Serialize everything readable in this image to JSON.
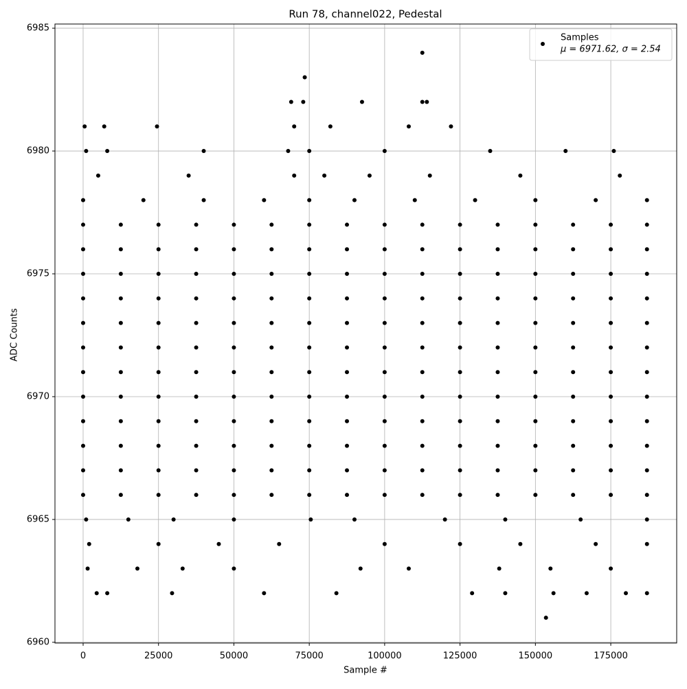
{
  "chart_data": {
    "type": "scatter",
    "title": "Run 78, channel022, Pedestal",
    "x_label": "Sample #",
    "y_label": "ADC Counts",
    "xlim": [
      -9340,
      196860
    ],
    "ylim": [
      6959.97,
      6985.17
    ],
    "xticks": [
      0,
      25000,
      50000,
      75000,
      100000,
      125000,
      150000,
      175000
    ],
    "yticks": [
      6960,
      6965,
      6970,
      6975,
      6980,
      6985
    ],
    "grid": true,
    "legend_position": "upper right",
    "series": [
      {
        "name": "Samples",
        "stats": "$\\mu$ = 6971.62, $\\sigma$ = 2.54",
        "stats_text": "μ = 6971.62, σ = 2.54",
        "color": "#000000",
        "x": [
          0,
          12500,
          25000,
          37500,
          50000,
          62500,
          75000,
          87500,
          100000,
          112500,
          125000,
          137500,
          150000,
          162500,
          175000,
          187000,
          0,
          12500,
          25000,
          37500,
          50000,
          62500,
          75000,
          87500,
          100000,
          112500,
          125000,
          137500,
          150000,
          162500,
          175000,
          187000,
          0,
          12500,
          25000,
          37500,
          50000,
          62500,
          75000,
          87500,
          100000,
          112500,
          125000,
          137500,
          150000,
          162500,
          175000,
          187000,
          0,
          12500,
          25000,
          37500,
          50000,
          62500,
          75000,
          87500,
          100000,
          112500,
          125000,
          137500,
          150000,
          162500,
          175000,
          187000,
          0,
          12500,
          25000,
          37500,
          50000,
          62500,
          75000,
          87500,
          100000,
          112500,
          125000,
          137500,
          150000,
          162500,
          175000,
          187000,
          0,
          12500,
          25000,
          37500,
          50000,
          62500,
          75000,
          87500,
          100000,
          112500,
          125000,
          137500,
          150000,
          162500,
          175000,
          187000,
          0,
          12500,
          25000,
          37500,
          50000,
          62500,
          75000,
          87500,
          100000,
          112500,
          125000,
          137500,
          150000,
          162500,
          175000,
          187000,
          0,
          12500,
          25000,
          37500,
          50000,
          62500,
          75000,
          87500,
          100000,
          112500,
          125000,
          137500,
          150000,
          162500,
          175000,
          187000,
          0,
          12500,
          25000,
          37500,
          50000,
          62500,
          75000,
          87500,
          100000,
          112500,
          125000,
          137500,
          150000,
          162500,
          175000,
          187000,
          0,
          12500,
          25000,
          37500,
          50000,
          62500,
          75000,
          87500,
          100000,
          112500,
          125000,
          137500,
          150000,
          162500,
          175000,
          187000,
          0,
          12500,
          25000,
          37500,
          50000,
          62500,
          75000,
          87500,
          100000,
          112500,
          125000,
          137500,
          150000,
          162500,
          175000,
          187000,
          0,
          12500,
          25000,
          37500,
          50000,
          62500,
          75000,
          87500,
          100000,
          112500,
          125000,
          137500,
          150000,
          162500,
          175000,
          187000,
          0,
          20000,
          40000,
          60000,
          75000,
          90000,
          110000,
          130000,
          150000,
          170000,
          187000,
          5000,
          35000,
          70000,
          80000,
          95000,
          115000,
          145000,
          178000,
          1000,
          8000,
          40000,
          68000,
          75000,
          100000,
          135000,
          160000,
          176000,
          500,
          7000,
          24500,
          70000,
          82000,
          108000,
          122000,
          69000,
          73000,
          92500,
          112500,
          114000,
          73500,
          112500,
          1000,
          15000,
          30000,
          50000,
          75500,
          90000,
          120000,
          140000,
          165000,
          187000,
          2000,
          25000,
          45000,
          65000,
          100000,
          125000,
          145000,
          170000,
          187000,
          1500,
          18000,
          33000,
          50000,
          92000,
          108000,
          138000,
          155000,
          175000,
          4500,
          8000,
          29500,
          60000,
          84000,
          129000,
          140000,
          156000,
          167000,
          180000,
          187000,
          153500
        ],
        "y": [
          6966,
          6966,
          6966,
          6966,
          6966,
          6966,
          6966,
          6966,
          6966,
          6966,
          6966,
          6966,
          6966,
          6966,
          6966,
          6966,
          6967,
          6967,
          6967,
          6967,
          6967,
          6967,
          6967,
          6967,
          6967,
          6967,
          6967,
          6967,
          6967,
          6967,
          6967,
          6967,
          6968,
          6968,
          6968,
          6968,
          6968,
          6968,
          6968,
          6968,
          6968,
          6968,
          6968,
          6968,
          6968,
          6968,
          6968,
          6968,
          6969,
          6969,
          6969,
          6969,
          6969,
          6969,
          6969,
          6969,
          6969,
          6969,
          6969,
          6969,
          6969,
          6969,
          6969,
          6969,
          6970,
          6970,
          6970,
          6970,
          6970,
          6970,
          6970,
          6970,
          6970,
          6970,
          6970,
          6970,
          6970,
          6970,
          6970,
          6970,
          6971,
          6971,
          6971,
          6971,
          6971,
          6971,
          6971,
          6971,
          6971,
          6971,
          6971,
          6971,
          6971,
          6971,
          6971,
          6971,
          6972,
          6972,
          6972,
          6972,
          6972,
          6972,
          6972,
          6972,
          6972,
          6972,
          6972,
          6972,
          6972,
          6972,
          6972,
          6972,
          6973,
          6973,
          6973,
          6973,
          6973,
          6973,
          6973,
          6973,
          6973,
          6973,
          6973,
          6973,
          6973,
          6973,
          6973,
          6973,
          6974,
          6974,
          6974,
          6974,
          6974,
          6974,
          6974,
          6974,
          6974,
          6974,
          6974,
          6974,
          6974,
          6974,
          6974,
          6974,
          6975,
          6975,
          6975,
          6975,
          6975,
          6975,
          6975,
          6975,
          6975,
          6975,
          6975,
          6975,
          6975,
          6975,
          6975,
          6975,
          6976,
          6976,
          6976,
          6976,
          6976,
          6976,
          6976,
          6976,
          6976,
          6976,
          6976,
          6976,
          6976,
          6976,
          6976,
          6976,
          6977,
          6977,
          6977,
          6977,
          6977,
          6977,
          6977,
          6977,
          6977,
          6977,
          6977,
          6977,
          6977,
          6977,
          6977,
          6977,
          6978,
          6978,
          6978,
          6978,
          6978,
          6978,
          6978,
          6978,
          6978,
          6978,
          6978,
          6979,
          6979,
          6979,
          6979,
          6979,
          6979,
          6979,
          6979,
          6980,
          6980,
          6980,
          6980,
          6980,
          6980,
          6980,
          6980,
          6980,
          6981,
          6981,
          6981,
          6981,
          6981,
          6981,
          6981,
          6982,
          6982,
          6982,
          6982,
          6982,
          6983,
          6984,
          6965,
          6965,
          6965,
          6965,
          6965,
          6965,
          6965,
          6965,
          6965,
          6965,
          6964,
          6964,
          6964,
          6964,
          6964,
          6964,
          6964,
          6964,
          6964,
          6963,
          6963,
          6963,
          6963,
          6963,
          6963,
          6963,
          6963,
          6963,
          6962,
          6962,
          6962,
          6962,
          6962,
          6962,
          6962,
          6962,
          6962,
          6962,
          6962,
          6961
        ]
      }
    ]
  }
}
